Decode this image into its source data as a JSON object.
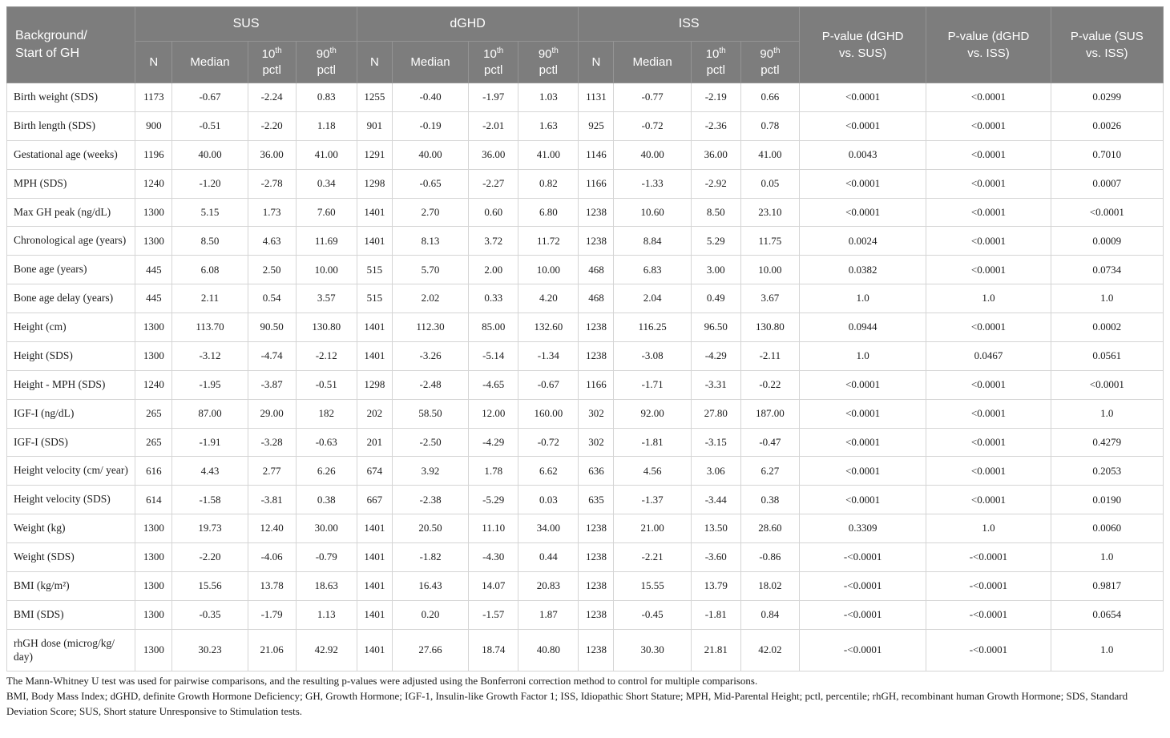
{
  "colors": {
    "header_bg": "#7d7d7d",
    "header_text": "#ffffff",
    "header_border": "#949494",
    "body_border": "#d5d5d5",
    "body_text": "#1c1c1c"
  },
  "table": {
    "row_header": "Background/\nStart of GH",
    "groups": [
      {
        "name": "SUS"
      },
      {
        "name": "dGHD"
      },
      {
        "name": "ISS"
      }
    ],
    "sub_columns": [
      {
        "label": "N"
      },
      {
        "label": "Median"
      },
      {
        "num": "10",
        "sup": "th",
        "unit": "pctl"
      },
      {
        "num": "90",
        "sup": "th",
        "unit": "pctl"
      }
    ],
    "p_columns": [
      "P-value (dGHD\nvs. SUS)",
      "P-value (dGHD\nvs. ISS)",
      "P-value (SUS\nvs. ISS)"
    ],
    "rows": [
      {
        "label": "Birth weight (SDS)",
        "sus": [
          "1173",
          "-0.67",
          "-2.24",
          "0.83"
        ],
        "dghd": [
          "1255",
          "-0.40",
          "-1.97",
          "1.03"
        ],
        "iss": [
          "1131",
          "-0.77",
          "-2.19",
          "0.66"
        ],
        "p": [
          "<0.0001",
          "<0.0001",
          "0.0299"
        ]
      },
      {
        "label": "Birth length (SDS)",
        "sus": [
          "900",
          "-0.51",
          "-2.20",
          "1.18"
        ],
        "dghd": [
          "901",
          "-0.19",
          "-2.01",
          "1.63"
        ],
        "iss": [
          "925",
          "-0.72",
          "-2.36",
          "0.78"
        ],
        "p": [
          "<0.0001",
          "<0.0001",
          "0.0026"
        ]
      },
      {
        "label": "Gestational age (weeks)",
        "sus": [
          "1196",
          "40.00",
          "36.00",
          "41.00"
        ],
        "dghd": [
          "1291",
          "40.00",
          "36.00",
          "41.00"
        ],
        "iss": [
          "1146",
          "40.00",
          "36.00",
          "41.00"
        ],
        "p": [
          "0.0043",
          "<0.0001",
          "0.7010"
        ]
      },
      {
        "label": "MPH (SDS)",
        "sus": [
          "1240",
          "-1.20",
          "-2.78",
          "0.34"
        ],
        "dghd": [
          "1298",
          "-0.65",
          "-2.27",
          "0.82"
        ],
        "iss": [
          "1166",
          "-1.33",
          "-2.92",
          "0.05"
        ],
        "p": [
          "<0.0001",
          "<0.0001",
          "0.0007"
        ]
      },
      {
        "label": "Max GH peak (ng/dL)",
        "sus": [
          "1300",
          "5.15",
          "1.73",
          "7.60"
        ],
        "dghd": [
          "1401",
          "2.70",
          "0.60",
          "6.80"
        ],
        "iss": [
          "1238",
          "10.60",
          "8.50",
          "23.10"
        ],
        "p": [
          "<0.0001",
          "<0.0001",
          "<0.0001"
        ]
      },
      {
        "label": "Chronological age (years)",
        "sus": [
          "1300",
          "8.50",
          "4.63",
          "11.69"
        ],
        "dghd": [
          "1401",
          "8.13",
          "3.72",
          "11.72"
        ],
        "iss": [
          "1238",
          "8.84",
          "5.29",
          "11.75"
        ],
        "p": [
          "0.0024",
          "<0.0001",
          "0.0009"
        ]
      },
      {
        "label": "Bone age (years)",
        "sus": [
          "445",
          "6.08",
          "2.50",
          "10.00"
        ],
        "dghd": [
          "515",
          "5.70",
          "2.00",
          "10.00"
        ],
        "iss": [
          "468",
          "6.83",
          "3.00",
          "10.00"
        ],
        "p": [
          "0.0382",
          "<0.0001",
          "0.0734"
        ]
      },
      {
        "label": "Bone age delay (years)",
        "sus": [
          "445",
          "2.11",
          "0.54",
          "3.57"
        ],
        "dghd": [
          "515",
          "2.02",
          "0.33",
          "4.20"
        ],
        "iss": [
          "468",
          "2.04",
          "0.49",
          "3.67"
        ],
        "p": [
          "1.0",
          "1.0",
          "1.0"
        ]
      },
      {
        "label": "Height (cm)",
        "sus": [
          "1300",
          "113.70",
          "90.50",
          "130.80"
        ],
        "dghd": [
          "1401",
          "112.30",
          "85.00",
          "132.60"
        ],
        "iss": [
          "1238",
          "116.25",
          "96.50",
          "130.80"
        ],
        "p": [
          "0.0944",
          "<0.0001",
          "0.0002"
        ]
      },
      {
        "label": "Height (SDS)",
        "sus": [
          "1300",
          "-3.12",
          "-4.74",
          "-2.12"
        ],
        "dghd": [
          "1401",
          "-3.26",
          "-5.14",
          "-1.34"
        ],
        "iss": [
          "1238",
          "-3.08",
          "-4.29",
          "-2.11"
        ],
        "p": [
          "1.0",
          "0.0467",
          "0.0561"
        ]
      },
      {
        "label": "Height - MPH (SDS)",
        "sus": [
          "1240",
          "-1.95",
          "-3.87",
          "-0.51"
        ],
        "dghd": [
          "1298",
          "-2.48",
          "-4.65",
          "-0.67"
        ],
        "iss": [
          "1166",
          "-1.71",
          "-3.31",
          "-0.22"
        ],
        "p": [
          "<0.0001",
          "<0.0001",
          "<0.0001"
        ]
      },
      {
        "label": "IGF-I (ng/dL)",
        "sus": [
          "265",
          "87.00",
          "29.00",
          "182"
        ],
        "dghd": [
          "202",
          "58.50",
          "12.00",
          "160.00"
        ],
        "iss": [
          "302",
          "92.00",
          "27.80",
          "187.00"
        ],
        "p": [
          "<0.0001",
          "<0.0001",
          "1.0"
        ]
      },
      {
        "label": "IGF-I (SDS)",
        "sus": [
          "265",
          "-1.91",
          "-3.28",
          "-0.63"
        ],
        "dghd": [
          "201",
          "-2.50",
          "-4.29",
          "-0.72"
        ],
        "iss": [
          "302",
          "-1.81",
          "-3.15",
          "-0.47"
        ],
        "p": [
          "<0.0001",
          "<0.0001",
          "0.4279"
        ]
      },
      {
        "label": "Height velocity (cm/ year)",
        "sus": [
          "616",
          "4.43",
          "2.77",
          "6.26"
        ],
        "dghd": [
          "674",
          "3.92",
          "1.78",
          "6.62"
        ],
        "iss": [
          "636",
          "4.56",
          "3.06",
          "6.27"
        ],
        "p": [
          "<0.0001",
          "<0.0001",
          "0.2053"
        ]
      },
      {
        "label": "Height velocity (SDS)",
        "sus": [
          "614",
          "-1.58",
          "-3.81",
          "0.38"
        ],
        "dghd": [
          "667",
          "-2.38",
          "-5.29",
          "0.03"
        ],
        "iss": [
          "635",
          "-1.37",
          "-3.44",
          "0.38"
        ],
        "p": [
          "<0.0001",
          "<0.0001",
          "0.0190"
        ]
      },
      {
        "label": "Weight (kg)",
        "sus": [
          "1300",
          "19.73",
          "12.40",
          "30.00"
        ],
        "dghd": [
          "1401",
          "20.50",
          "11.10",
          "34.00"
        ],
        "iss": [
          "1238",
          "21.00",
          "13.50",
          "28.60"
        ],
        "p": [
          "0.3309",
          "1.0",
          "0.0060"
        ]
      },
      {
        "label": "Weight (SDS)",
        "sus": [
          "1300",
          "-2.20",
          "-4.06",
          "-0.79"
        ],
        "dghd": [
          "1401",
          "-1.82",
          "-4.30",
          "0.44"
        ],
        "iss": [
          "1238",
          "-2.21",
          "-3.60",
          "-0.86"
        ],
        "p": [
          "-<0.0001",
          "-<0.0001",
          "1.0"
        ]
      },
      {
        "label": "BMI (kg/m²)",
        "sus": [
          "1300",
          "15.56",
          "13.78",
          "18.63"
        ],
        "dghd": [
          "1401",
          "16.43",
          "14.07",
          "20.83"
        ],
        "iss": [
          "1238",
          "15.55",
          "13.79",
          "18.02"
        ],
        "p": [
          "-<0.0001",
          "-<0.0001",
          "0.9817"
        ]
      },
      {
        "label": "BMI (SDS)",
        "sus": [
          "1300",
          "-0.35",
          "-1.79",
          "1.13"
        ],
        "dghd": [
          "1401",
          "0.20",
          "-1.57",
          "1.87"
        ],
        "iss": [
          "1238",
          "-0.45",
          "-1.81",
          "0.84"
        ],
        "p": [
          "-<0.0001",
          "-<0.0001",
          "0.0654"
        ]
      },
      {
        "label": "rhGH dose (microg/kg/ day)",
        "sus": [
          "1300",
          "30.23",
          "21.06",
          "42.92"
        ],
        "dghd": [
          "1401",
          "27.66",
          "18.74",
          "40.80"
        ],
        "iss": [
          "1238",
          "30.30",
          "21.81",
          "42.02"
        ],
        "p": [
          "-<0.0001",
          "-<0.0001",
          "1.0"
        ]
      }
    ]
  },
  "footnotes": [
    "The Mann-Whitney U test was used for pairwise comparisons, and the resulting p-values were adjusted using the Bonferroni correction method to control for multiple comparisons.",
    "BMI, Body Mass Index; dGHD, definite Growth Hormone Deficiency; GH, Growth Hormone; IGF-1, Insulin-like Growth Factor 1; ISS, Idiopathic Short Stature; MPH, Mid-Parental Height; pctl, percentile; rhGH, recombinant human Growth Hormone; SDS, Standard Deviation Score; SUS, Short stature Unresponsive to Stimulation tests."
  ]
}
